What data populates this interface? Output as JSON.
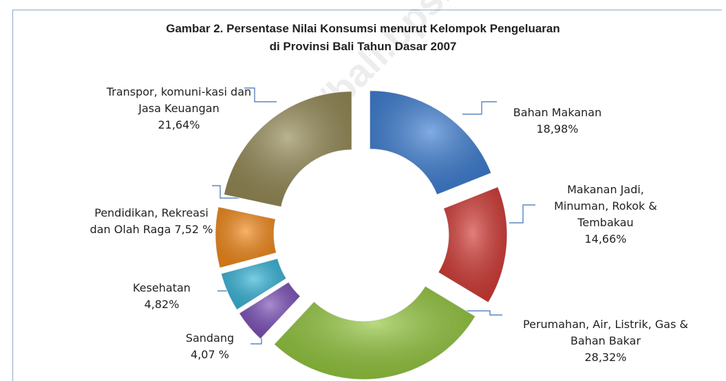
{
  "chart_data": {
    "type": "donut",
    "title": [
      "Gambar 2. Persentase Nilai Konsumsi menurut Kelompok Pengeluaran",
      "di Provinsi Bali Tahun Dasar 2007"
    ],
    "watermark": "https://bali.bps.go.id",
    "categories": [
      "Bahan Makanan",
      "Makanan Jadi, Minuman, Rokok & Tembakau",
      "Perumahan, Air, Listrik, Gas & Bahan Bakar",
      "Sandang",
      "Kesehatan",
      "Pendidikan, Rekreasi dan Olah Raga",
      "Transpor, komuni-kasi dan Jasa Keuangan"
    ],
    "values": [
      18.98,
      14.66,
      28.32,
      4.07,
      4.82,
      7.52,
      21.64
    ],
    "value_labels": [
      "18,98%",
      "14,66%",
      "28,32%",
      "4,07 %",
      "4,82%",
      "7,52 %",
      "21,64%"
    ],
    "colors": [
      "#3f7fd3",
      "#d23b36",
      "#93c63e",
      "#7b50b8",
      "#37b4d8",
      "#f28a1c",
      "#958a56"
    ]
  }
}
